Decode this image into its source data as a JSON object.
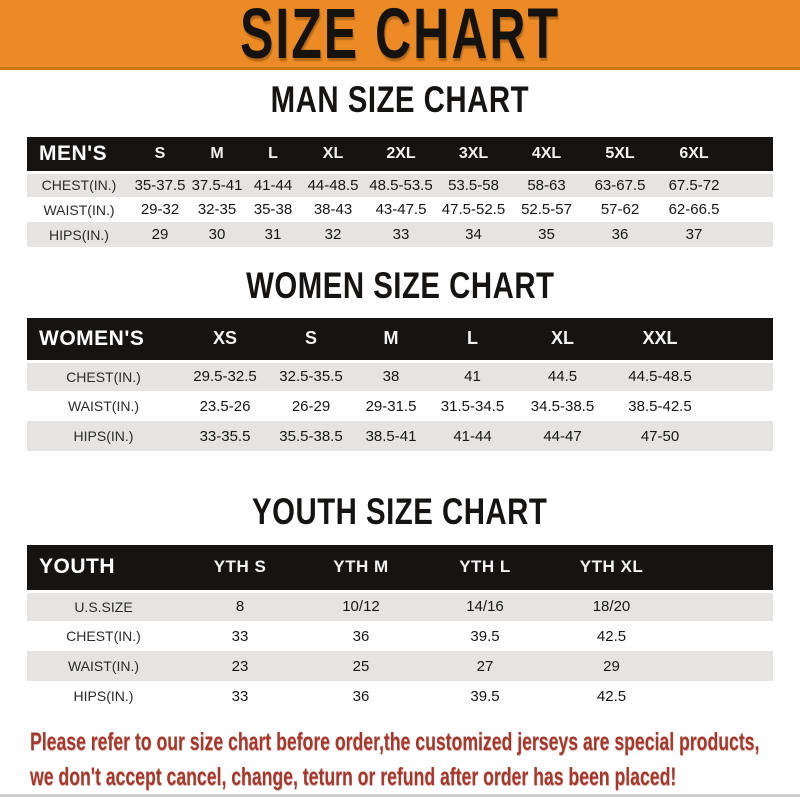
{
  "banner": {
    "title": "SIZE CHART",
    "bg_color": "#ec8b25",
    "text_color": "#151310"
  },
  "colors": {
    "header_bar": "#161412",
    "row_gray": "#e5e4e2",
    "row_white": "#ffffff",
    "footer_red": "#a5372b"
  },
  "sections": [
    {
      "title": "MAN SIZE CHART",
      "header_label": "MEN'S",
      "columns": [
        "S",
        "M",
        "L",
        "XL",
        "2XL",
        "3XL",
        "4XL",
        "5XL",
        "6XL"
      ],
      "rows": [
        {
          "label": "CHEST(IN.)",
          "values": [
            "35-37.5",
            "37.5-41",
            "41-44",
            "44-48.5",
            "48.5-53.5",
            "53.5-58",
            "58-63",
            "63-67.5",
            "67.5-72"
          ]
        },
        {
          "label": "WAIST(IN.)",
          "values": [
            "29-32",
            "32-35",
            "35-38",
            "38-43",
            "43-47.5",
            "47.5-52.5",
            "52.5-57",
            "57-62",
            "62-66.5"
          ]
        },
        {
          "label": "HIPS(IN.)",
          "values": [
            "29",
            "30",
            "31",
            "32",
            "33",
            "34",
            "35",
            "36",
            "37"
          ]
        }
      ]
    },
    {
      "title": "WOMEN SIZE CHART",
      "header_label": "WOMEN'S",
      "columns": [
        "XS",
        "S",
        "M",
        "L",
        "XL",
        "XXL"
      ],
      "rows": [
        {
          "label": "CHEST(IN.)",
          "values": [
            "29.5-32.5",
            "32.5-35.5",
            "38",
            "41",
            "44.5",
            "44.5-48.5"
          ]
        },
        {
          "label": "WAIST(IN.)",
          "values": [
            "23.5-26",
            "26-29",
            "29-31.5",
            "31.5-34.5",
            "34.5-38.5",
            "38.5-42.5"
          ]
        },
        {
          "label": "HIPS(IN.)",
          "values": [
            "33-35.5",
            "35.5-38.5",
            "38.5-41",
            "41-44",
            "44-47",
            "47-50"
          ]
        }
      ]
    },
    {
      "title": "YOUTH SIZE CHART",
      "header_label": "YOUTH",
      "columns": [
        "YTH S",
        "YTH M",
        "YTH L",
        "YTH XL"
      ],
      "rows": [
        {
          "label": "U.S.SIZE",
          "values": [
            "8",
            "10/12",
            "14/16",
            "18/20"
          ]
        },
        {
          "label": "CHEST(IN.)",
          "values": [
            "33",
            "36",
            "39.5",
            "42.5"
          ]
        },
        {
          "label": "WAIST(IN.)",
          "values": [
            "23",
            "25",
            "27",
            "29"
          ]
        },
        {
          "label": "HIPS(IN.)",
          "values": [
            "33",
            "36",
            "39.5",
            "42.5"
          ]
        }
      ]
    }
  ],
  "footer": {
    "line1": "Please refer to our size chart before order,the customized jerseys are special products,",
    "line2": "we don't accept cancel, change, teturn or refund after order has been placed!"
  }
}
